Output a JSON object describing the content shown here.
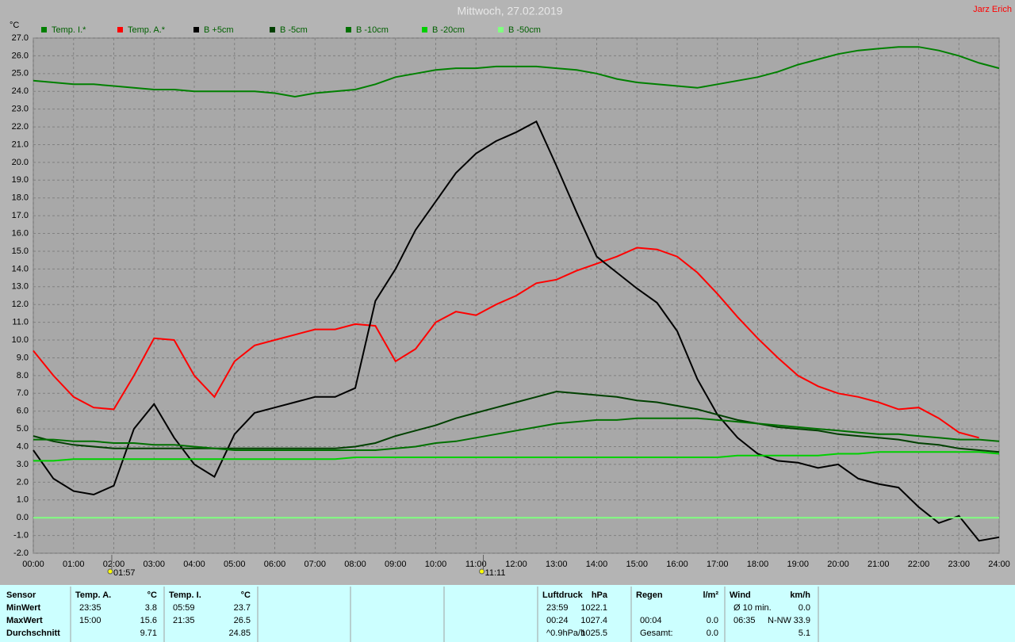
{
  "chart_data": {
    "type": "line",
    "title": "Mittwoch, 27.02.2019",
    "author": "Jarz Erich",
    "y_label": "°C",
    "x": [
      0,
      0.5,
      1,
      1.5,
      2,
      2.5,
      3,
      3.5,
      4,
      4.5,
      5,
      5.5,
      6,
      6.5,
      7,
      7.5,
      8,
      8.5,
      9,
      9.5,
      10,
      10.5,
      11,
      11.5,
      12,
      12.5,
      13,
      13.5,
      14,
      14.5,
      15,
      15.5,
      16,
      16.5,
      17,
      17.5,
      18,
      18.5,
      19,
      19.5,
      20,
      20.5,
      21,
      21.5,
      22,
      22.5,
      23,
      23.5,
      24
    ],
    "series": [
      {
        "name": "Temp. I.*",
        "color": "#008000",
        "values": [
          24.6,
          24.5,
          24.4,
          24.4,
          24.3,
          24.2,
          24.1,
          24.1,
          24.0,
          24.0,
          24.0,
          24.0,
          23.9,
          23.7,
          23.9,
          24.0,
          24.1,
          24.4,
          24.8,
          25.0,
          25.2,
          25.3,
          25.3,
          25.4,
          25.4,
          25.4,
          25.3,
          25.2,
          25.0,
          24.7,
          24.5,
          24.4,
          24.3,
          24.2,
          24.4,
          24.6,
          24.8,
          25.1,
          25.5,
          25.8,
          26.1,
          26.3,
          26.4,
          26.5,
          26.5,
          26.3,
          26.0,
          25.6,
          25.3
        ]
      },
      {
        "name": "Temp. A.*",
        "color": "#ff0000",
        "values": [
          9.4,
          8.0,
          6.8,
          6.2,
          6.1,
          8.0,
          10.1,
          10.0,
          8.0,
          6.8,
          8.8,
          9.7,
          10.0,
          10.3,
          10.6,
          10.6,
          10.9,
          10.8,
          8.8,
          9.5,
          11.0,
          11.6,
          11.4,
          12.0,
          12.5,
          13.2,
          13.4,
          13.9,
          14.3,
          14.7,
          15.2,
          15.1,
          14.7,
          13.8,
          12.6,
          11.3,
          10.1,
          9.0,
          8.0,
          7.4,
          7.0,
          6.8,
          6.5,
          6.1,
          6.2,
          5.6,
          4.8,
          4.5,
          null
        ]
      },
      {
        "name": "B +5cm",
        "color": "#000000",
        "values": [
          3.8,
          2.2,
          1.5,
          1.3,
          1.8,
          5.0,
          6.4,
          4.5,
          3.0,
          2.3,
          4.7,
          5.9,
          6.2,
          6.5,
          6.8,
          6.8,
          7.3,
          12.2,
          14.0,
          16.2,
          17.8,
          19.4,
          20.5,
          21.2,
          21.7,
          22.3,
          19.8,
          17.2,
          14.7,
          13.8,
          12.9,
          12.1,
          10.5,
          7.8,
          5.8,
          4.5,
          3.6,
          3.2,
          3.1,
          2.8,
          3.0,
          2.2,
          1.9,
          1.7,
          0.6,
          -0.3,
          0.1,
          -1.3,
          -1.1
        ]
      },
      {
        "name": "B -5cm",
        "color": "#004000",
        "values": [
          4.6,
          4.3,
          4.1,
          4.0,
          3.9,
          3.9,
          3.9,
          3.9,
          3.9,
          3.9,
          3.9,
          3.9,
          3.9,
          3.9,
          3.9,
          3.9,
          4.0,
          4.2,
          4.6,
          4.9,
          5.2,
          5.6,
          5.9,
          6.2,
          6.5,
          6.8,
          7.1,
          7.0,
          6.9,
          6.8,
          6.6,
          6.5,
          6.3,
          6.1,
          5.8,
          5.5,
          5.3,
          5.1,
          5.0,
          4.9,
          4.7,
          4.6,
          4.5,
          4.4,
          4.2,
          4.1,
          3.9,
          3.8,
          3.7
        ]
      },
      {
        "name": "B -10cm",
        "color": "#007000",
        "values": [
          4.4,
          4.4,
          4.3,
          4.3,
          4.2,
          4.2,
          4.1,
          4.1,
          4.0,
          3.9,
          3.8,
          3.8,
          3.8,
          3.8,
          3.8,
          3.8,
          3.8,
          3.8,
          3.9,
          4.0,
          4.2,
          4.3,
          4.5,
          4.7,
          4.9,
          5.1,
          5.3,
          5.4,
          5.5,
          5.5,
          5.6,
          5.6,
          5.6,
          5.6,
          5.5,
          5.4,
          5.3,
          5.2,
          5.1,
          5.0,
          4.9,
          4.8,
          4.7,
          4.7,
          4.6,
          4.5,
          4.4,
          4.4,
          4.3
        ]
      },
      {
        "name": "B -20cm",
        "color": "#00d000",
        "values": [
          3.2,
          3.2,
          3.3,
          3.3,
          3.3,
          3.3,
          3.3,
          3.3,
          3.3,
          3.3,
          3.3,
          3.3,
          3.3,
          3.3,
          3.3,
          3.3,
          3.4,
          3.4,
          3.4,
          3.4,
          3.4,
          3.4,
          3.4,
          3.4,
          3.4,
          3.4,
          3.4,
          3.4,
          3.4,
          3.4,
          3.4,
          3.4,
          3.4,
          3.4,
          3.4,
          3.5,
          3.5,
          3.5,
          3.5,
          3.5,
          3.6,
          3.6,
          3.7,
          3.7,
          3.7,
          3.7,
          3.7,
          3.7,
          3.6
        ]
      },
      {
        "name": "B -50cm",
        "color": "#80ff80",
        "values": [
          0,
          0,
          0,
          0,
          0,
          0,
          0,
          0,
          0,
          0,
          0,
          0,
          0,
          0,
          0,
          0,
          0,
          0,
          0,
          0,
          0,
          0,
          0,
          0,
          0,
          0,
          0,
          0,
          0,
          0,
          0,
          0,
          0,
          0,
          0,
          0,
          0,
          0,
          0,
          0,
          0,
          0,
          0,
          0,
          0,
          0,
          0,
          0,
          0
        ]
      }
    ],
    "xlim": [
      0,
      24
    ],
    "ylim": [
      -2,
      27
    ],
    "grid": true,
    "xticks": [
      {
        "value": 0,
        "label": "00:00"
      },
      {
        "value": 1,
        "label": "01:00"
      },
      {
        "value": 2,
        "label": "02:00"
      },
      {
        "value": 3,
        "label": "03:00"
      },
      {
        "value": 4,
        "label": "04:00"
      },
      {
        "value": 5,
        "label": "05:00"
      },
      {
        "value": 6,
        "label": "06:00"
      },
      {
        "value": 7,
        "label": "07:00"
      },
      {
        "value": 8,
        "label": "08:00"
      },
      {
        "value": 9,
        "label": "09:00"
      },
      {
        "value": 10,
        "label": "10:00"
      },
      {
        "value": 11,
        "label": "11:00"
      },
      {
        "value": 12,
        "label": "12:00"
      },
      {
        "value": 13,
        "label": "13:00"
      },
      {
        "value": 14,
        "label": "14:00"
      },
      {
        "value": 15,
        "label": "15:00"
      },
      {
        "value": 16,
        "label": "16:00"
      },
      {
        "value": 17,
        "label": "17:00"
      },
      {
        "value": 18,
        "label": "18:00"
      },
      {
        "value": 19,
        "label": "19:00"
      },
      {
        "value": 20,
        "label": "20:00"
      },
      {
        "value": 21,
        "label": "21:00"
      },
      {
        "value": 22,
        "label": "22:00"
      },
      {
        "value": 23,
        "label": "23:00"
      },
      {
        "value": 24,
        "label": "24:00"
      }
    ],
    "yticks": [
      {
        "value": -2,
        "label": "-2.0"
      },
      {
        "value": -1,
        "label": "-1.0"
      },
      {
        "value": 0,
        "label": "0.0"
      },
      {
        "value": 1,
        "label": "1.0"
      },
      {
        "value": 2,
        "label": "2.0"
      },
      {
        "value": 3,
        "label": "3.0"
      },
      {
        "value": 4,
        "label": "4.0"
      },
      {
        "value": 5,
        "label": "5.0"
      },
      {
        "value": 6,
        "label": "6.0"
      },
      {
        "value": 7,
        "label": "7.0"
      },
      {
        "value": 8,
        "label": "8.0"
      },
      {
        "value": 9,
        "label": "9.0"
      },
      {
        "value": 10,
        "label": "10.0"
      },
      {
        "value": 11,
        "label": "11.0"
      },
      {
        "value": 12,
        "label": "12.0"
      },
      {
        "value": 13,
        "label": "13.0"
      },
      {
        "value": 14,
        "label": "14.0"
      },
      {
        "value": 15,
        "label": "15.0"
      },
      {
        "value": 16,
        "label": "16.0"
      },
      {
        "value": 17,
        "label": "17.0"
      },
      {
        "value": 18,
        "label": "18.0"
      },
      {
        "value": 19,
        "label": "19.0"
      },
      {
        "value": 20,
        "label": "20.0"
      },
      {
        "value": 21,
        "label": "21.0"
      },
      {
        "value": 22,
        "label": "22.0"
      },
      {
        "value": 23,
        "label": "23.0"
      },
      {
        "value": 24,
        "label": "24.0"
      },
      {
        "value": 25,
        "label": "25.0"
      },
      {
        "value": 26,
        "label": "26.0"
      },
      {
        "value": 27,
        "label": "27.0"
      }
    ],
    "annotations": [
      {
        "x": 1.95,
        "label": "01:57"
      },
      {
        "x": 11.1833,
        "label": "11:11"
      }
    ]
  },
  "stats": {
    "row_labels": [
      "Sensor",
      "MinWert",
      "MaxWert",
      "Durchschnitt"
    ],
    "groups": [
      {
        "name": "Temp. A.",
        "unit": "°C",
        "rows": [
          {
            "time": "23:35",
            "value": "3.8"
          },
          {
            "time": "15:00",
            "value": "15.6"
          },
          {
            "value": "9.71"
          }
        ]
      },
      {
        "name": "Temp. I.",
        "unit": "°C",
        "rows": [
          {
            "time": "05:59",
            "value": "23.7"
          },
          {
            "time": "21:35",
            "value": "26.5"
          },
          {
            "value": "24.85"
          }
        ]
      },
      {
        "name": "Luftdruck",
        "unit": "hPa",
        "rows": [
          {
            "time": "23:59",
            "value": "1022.1"
          },
          {
            "time": "00:24",
            "value": "1027.4"
          },
          {
            "time": "^0.9hPa/h",
            "value": "1025.5"
          }
        ]
      },
      {
        "name": "Regen",
        "unit": "l/m²",
        "rows": [
          null,
          {
            "time": "00:04",
            "value": "0.0"
          },
          {
            "time": "Gesamt:",
            "value": "0.0"
          }
        ]
      },
      {
        "name": "Wind",
        "unit": "km/h",
        "rows": [
          {
            "time": "Ø 10 min.",
            "value": "0.0"
          },
          {
            "time": "06:35",
            "dir": "N-NW",
            "value": "33.9"
          },
          {
            "value": "5.1"
          }
        ]
      }
    ]
  }
}
